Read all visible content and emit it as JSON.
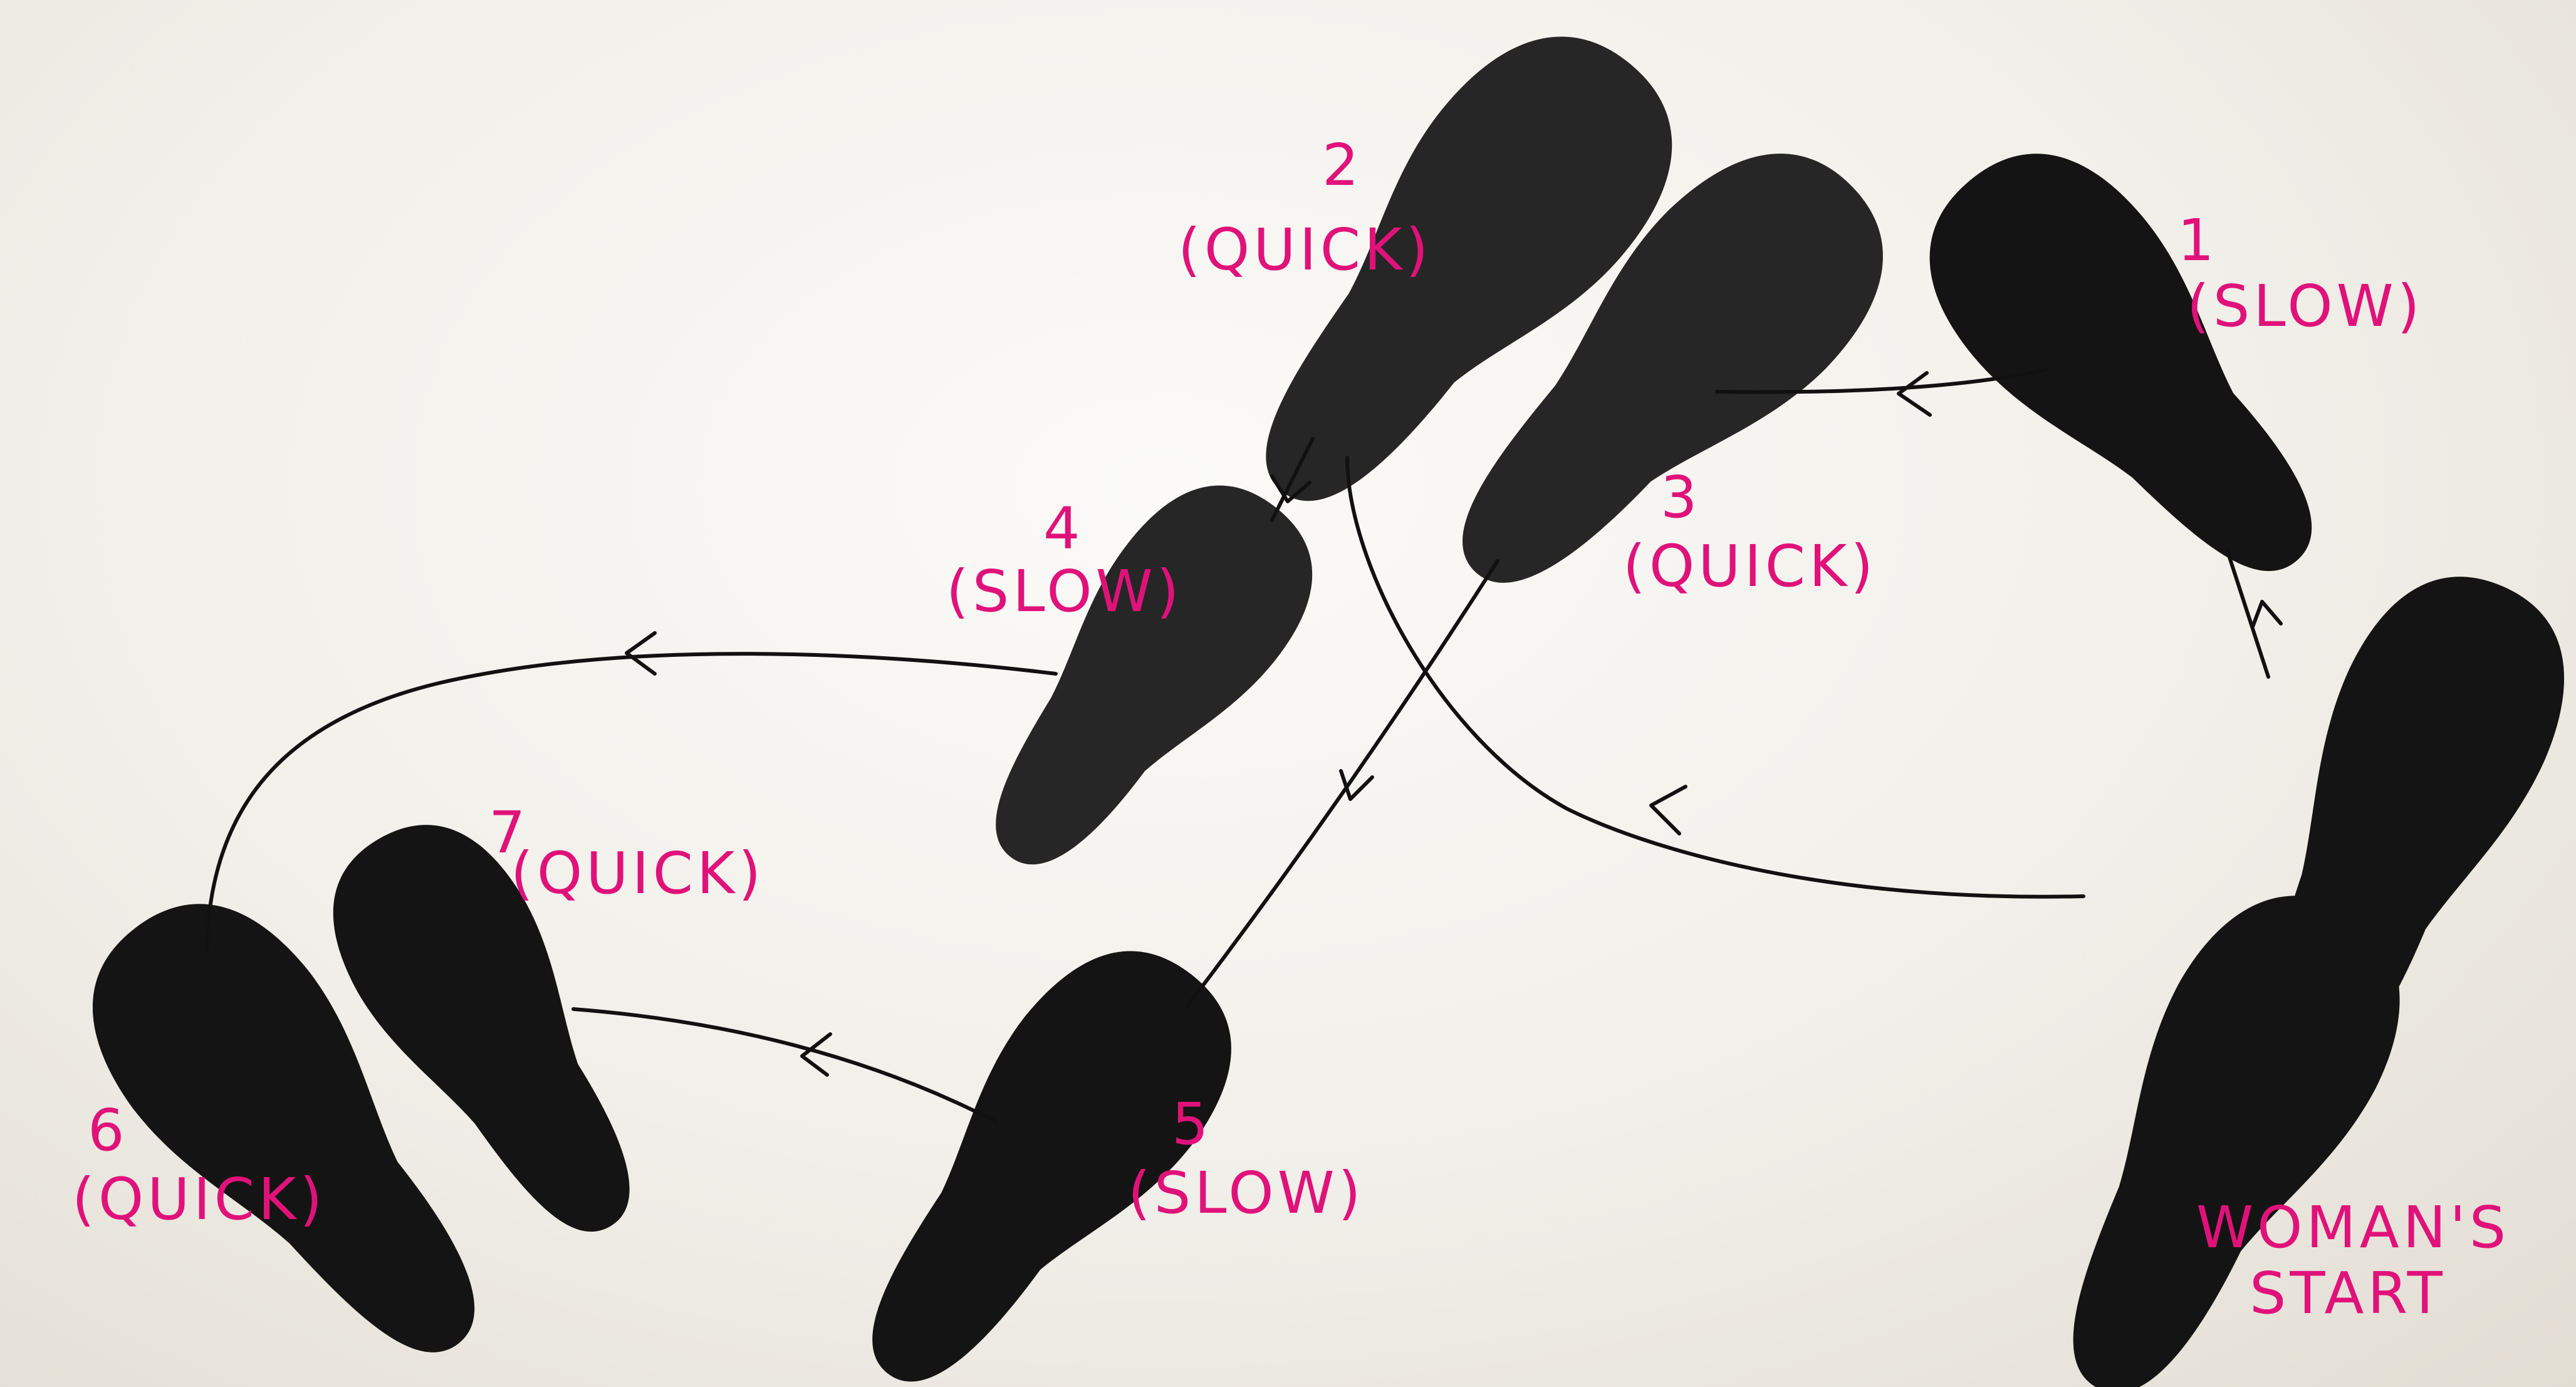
{
  "label_color": "#e0127a",
  "labels": {
    "step_1_number": "1",
    "step_1_timing": "(SLOW)",
    "step_2_number": "2",
    "step_2_timing": "(QUICK)",
    "step_3_number": "3",
    "step_3_timing": "(QUICK)",
    "step_4_number": "4",
    "step_4_timing": "(SLOW)",
    "step_5_number": "5",
    "step_5_timing": "(SLOW)",
    "step_6_number": "6",
    "step_6_timing": "(QUICK)",
    "step_7_number": "7",
    "step_7_timing": "(QUICK)",
    "start_line1": "WOMAN'S",
    "start_line2": "START"
  }
}
